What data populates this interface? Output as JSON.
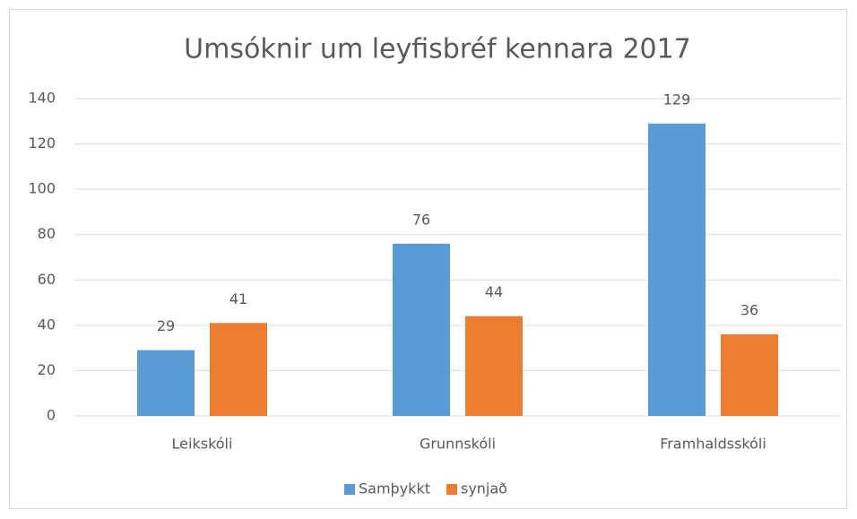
{
  "chart_data": {
    "type": "bar",
    "title": "Umsóknir um leyfisbréf kennara 2017",
    "categories": [
      "Leikskóli",
      "Grunnskóli",
      "Framhaldsskóli"
    ],
    "series": [
      {
        "name": "Samþykkt",
        "color": "#5b9bd5",
        "values": [
          29,
          76,
          129
        ]
      },
      {
        "name": "synjað",
        "color": "#ed7d31",
        "values": [
          41,
          44,
          36
        ]
      }
    ],
    "ylim": [
      0,
      140
    ],
    "yticks": [
      0,
      20,
      40,
      60,
      80,
      100,
      120,
      140
    ],
    "grid": true,
    "legend": "bottom"
  }
}
